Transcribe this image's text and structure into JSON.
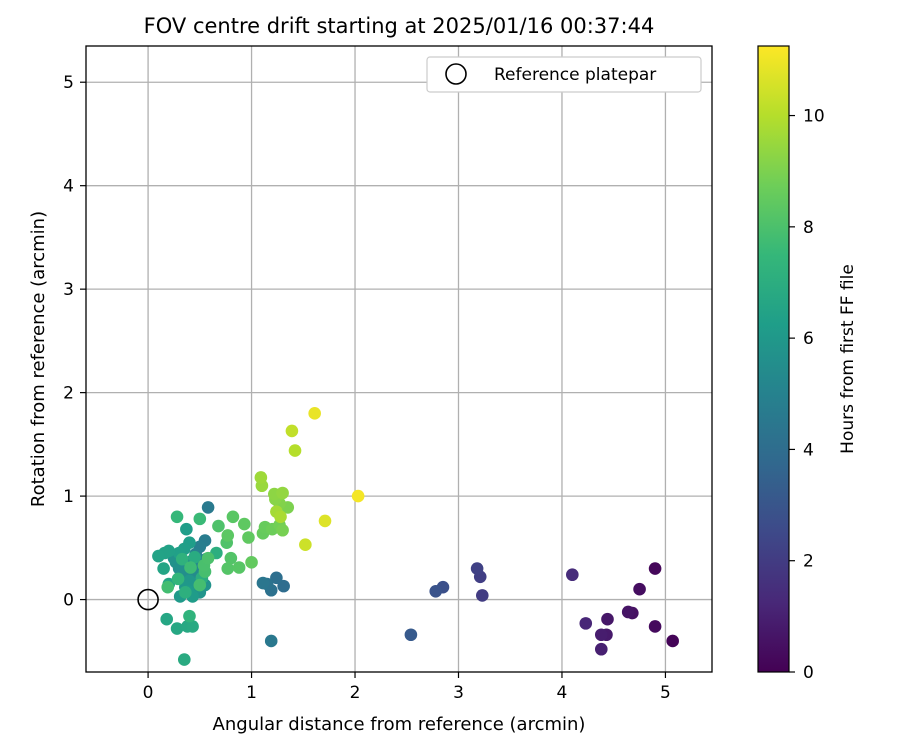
{
  "chart_data": {
    "type": "scatter",
    "title": "FOV centre drift starting at 2025/01/16 00:37:44",
    "xlabel": "Angular distance from reference (arcmin)",
    "ylabel": "Rotation from reference (arcmin)",
    "xlim": [
      -0.6,
      5.45
    ],
    "ylim": [
      -0.7,
      5.35
    ],
    "xticks": [
      "0",
      "1",
      "2",
      "3",
      "4",
      "5"
    ],
    "yticks": [
      "0",
      "1",
      "2",
      "3",
      "4",
      "5"
    ],
    "grid": true,
    "legend": {
      "placement": "top-right",
      "entries": [
        "Reference platepar"
      ]
    },
    "reference_point": {
      "x": 0,
      "y": 0
    },
    "colorbar": {
      "label": "Hours from first FF file",
      "range": [
        0,
        11.25
      ],
      "ticks": [
        "0",
        "2",
        "4",
        "6",
        "8",
        "10"
      ],
      "colormap": "viridis",
      "colors": [
        "#440154",
        "#482878",
        "#3e4989",
        "#31688e",
        "#26828e",
        "#1f9e89",
        "#35b779",
        "#6ece58",
        "#b5de2b",
        "#fde725"
      ]
    },
    "series": [
      {
        "points": [
          {
            "x": 5.07,
            "y": -0.4,
            "c": 0.1
          },
          {
            "x": 4.9,
            "y": 0.3,
            "c": 0.2
          },
          {
            "x": 4.9,
            "y": -0.26,
            "c": 0.3
          },
          {
            "x": 4.75,
            "y": 0.1,
            "c": 0.4
          },
          {
            "x": 4.68,
            "y": -0.13,
            "c": 0.5
          },
          {
            "x": 4.64,
            "y": -0.12,
            "c": 0.6
          },
          {
            "x": 4.44,
            "y": -0.19,
            "c": 0.7
          },
          {
            "x": 4.43,
            "y": -0.34,
            "c": 0.8
          },
          {
            "x": 4.38,
            "y": -0.34,
            "c": 0.9
          },
          {
            "x": 4.38,
            "y": -0.48,
            "c": 1.0
          },
          {
            "x": 4.23,
            "y": -0.23,
            "c": 1.2
          },
          {
            "x": 4.1,
            "y": 0.24,
            "c": 1.4
          },
          {
            "x": 3.23,
            "y": 0.04,
            "c": 2.0
          },
          {
            "x": 3.21,
            "y": 0.22,
            "c": 2.1
          },
          {
            "x": 3.18,
            "y": 0.3,
            "c": 2.2
          },
          {
            "x": 2.85,
            "y": 0.12,
            "c": 2.8
          },
          {
            "x": 2.78,
            "y": 0.08,
            "c": 2.9
          },
          {
            "x": 2.54,
            "y": -0.34,
            "c": 3.2
          },
          {
            "x": 1.31,
            "y": 0.13,
            "c": 4.0
          },
          {
            "x": 1.24,
            "y": 0.21,
            "c": 4.1
          },
          {
            "x": 1.19,
            "y": 0.09,
            "c": 4.2
          },
          {
            "x": 1.15,
            "y": 0.15,
            "c": 4.3
          },
          {
            "x": 1.11,
            "y": 0.16,
            "c": 4.4
          },
          {
            "x": 1.19,
            "y": -0.4,
            "c": 4.5
          },
          {
            "x": 0.58,
            "y": 0.89,
            "c": 4.6
          },
          {
            "x": 0.55,
            "y": 0.57,
            "c": 4.7
          },
          {
            "x": 0.5,
            "y": 0.51,
            "c": 4.8
          },
          {
            "x": 0.46,
            "y": 0.44,
            "c": 4.9
          },
          {
            "x": 0.56,
            "y": 0.39,
            "c": 5.0
          },
          {
            "x": 0.42,
            "y": 0.37,
            "c": 5.1
          },
          {
            "x": 0.45,
            "y": 0.36,
            "c": 5.15
          },
          {
            "x": 0.38,
            "y": 0.35,
            "c": 5.2
          },
          {
            "x": 0.35,
            "y": 0.33,
            "c": 5.25
          },
          {
            "x": 0.5,
            "y": 0.31,
            "c": 5.3
          },
          {
            "x": 0.48,
            "y": 0.27,
            "c": 5.35
          },
          {
            "x": 0.42,
            "y": 0.25,
            "c": 5.4
          },
          {
            "x": 0.37,
            "y": 0.21,
            "c": 5.5
          },
          {
            "x": 0.33,
            "y": 0.24,
            "c": 5.55
          },
          {
            "x": 0.3,
            "y": 0.3,
            "c": 5.6
          },
          {
            "x": 0.27,
            "y": 0.36,
            "c": 5.65
          },
          {
            "x": 0.25,
            "y": 0.4,
            "c": 5.7
          },
          {
            "x": 0.55,
            "y": 0.14,
            "c": 5.75
          },
          {
            "x": 0.5,
            "y": 0.07,
            "c": 5.8
          },
          {
            "x": 0.47,
            "y": 0.11,
            "c": 5.85
          },
          {
            "x": 0.44,
            "y": 0.15,
            "c": 5.9
          },
          {
            "x": 0.4,
            "y": 0.18,
            "c": 5.95
          },
          {
            "x": 0.36,
            "y": 0.12,
            "c": 6.0
          },
          {
            "x": 0.31,
            "y": 0.03,
            "c": 6.05
          },
          {
            "x": 0.39,
            "y": 0.08,
            "c": 6.1
          },
          {
            "x": 0.43,
            "y": 0.03,
            "c": 6.15
          },
          {
            "x": 0.37,
            "y": 0.68,
            "c": 6.2
          },
          {
            "x": 0.4,
            "y": 0.55,
            "c": 6.25
          },
          {
            "x": 0.35,
            "y": 0.49,
            "c": 6.3
          },
          {
            "x": 0.3,
            "y": 0.45,
            "c": 6.35
          },
          {
            "x": 0.2,
            "y": 0.47,
            "c": 6.4
          },
          {
            "x": 0.16,
            "y": 0.45,
            "c": 6.45
          },
          {
            "x": 0.1,
            "y": 0.42,
            "c": 6.5
          },
          {
            "x": 0.15,
            "y": 0.3,
            "c": 6.55
          },
          {
            "x": 0.2,
            "y": 0.15,
            "c": 6.6
          },
          {
            "x": 0.18,
            "y": -0.19,
            "c": 6.65
          },
          {
            "x": 0.28,
            "y": -0.28,
            "c": 6.7
          },
          {
            "x": 0.38,
            "y": -0.26,
            "c": 6.75
          },
          {
            "x": 0.43,
            "y": -0.26,
            "c": 6.8
          },
          {
            "x": 0.35,
            "y": -0.58,
            "c": 6.85
          },
          {
            "x": 0.45,
            "y": 0.41,
            "c": 6.9
          },
          {
            "x": 0.52,
            "y": 0.21,
            "c": 7.0
          },
          {
            "x": 0.66,
            "y": 0.45,
            "c": 7.05
          },
          {
            "x": 0.36,
            "y": 0.07,
            "c": 7.1
          },
          {
            "x": 0.33,
            "y": 0.39,
            "c": 7.2
          },
          {
            "x": 0.4,
            "y": -0.16,
            "c": 7.3
          },
          {
            "x": 0.29,
            "y": 0.2,
            "c": 7.4
          },
          {
            "x": 0.28,
            "y": 0.8,
            "c": 7.5
          },
          {
            "x": 0.5,
            "y": 0.78,
            "c": 7.6
          },
          {
            "x": 0.41,
            "y": 0.31,
            "c": 7.7
          },
          {
            "x": 0.19,
            "y": 0.12,
            "c": 7.8
          },
          {
            "x": 0.5,
            "y": 0.14,
            "c": 7.85
          },
          {
            "x": 0.55,
            "y": 0.27,
            "c": 7.9
          },
          {
            "x": 0.54,
            "y": 0.33,
            "c": 7.95
          },
          {
            "x": 0.58,
            "y": 0.4,
            "c": 8.0
          },
          {
            "x": 0.68,
            "y": 0.71,
            "c": 8.05
          },
          {
            "x": 0.76,
            "y": 0.55,
            "c": 8.1
          },
          {
            "x": 0.8,
            "y": 0.4,
            "c": 8.15
          },
          {
            "x": 0.77,
            "y": 0.3,
            "c": 8.2
          },
          {
            "x": 0.88,
            "y": 0.31,
            "c": 8.25
          },
          {
            "x": 0.82,
            "y": 0.8,
            "c": 8.3
          },
          {
            "x": 0.77,
            "y": 0.62,
            "c": 8.35
          },
          {
            "x": 0.93,
            "y": 0.73,
            "c": 8.4
          },
          {
            "x": 0.97,
            "y": 0.6,
            "c": 8.45
          },
          {
            "x": 1.0,
            "y": 0.36,
            "c": 8.5
          },
          {
            "x": 1.11,
            "y": 0.64,
            "c": 8.55
          },
          {
            "x": 1.13,
            "y": 0.7,
            "c": 8.6
          },
          {
            "x": 1.2,
            "y": 0.68,
            "c": 8.7
          },
          {
            "x": 1.27,
            "y": 0.72,
            "c": 8.8
          },
          {
            "x": 1.3,
            "y": 0.67,
            "c": 8.9
          },
          {
            "x": 1.35,
            "y": 0.89,
            "c": 9.0
          },
          {
            "x": 1.27,
            "y": 0.93,
            "c": 9.1
          },
          {
            "x": 1.23,
            "y": 0.97,
            "c": 9.2
          },
          {
            "x": 1.22,
            "y": 1.02,
            "c": 9.3
          },
          {
            "x": 1.3,
            "y": 1.03,
            "c": 9.4
          },
          {
            "x": 1.1,
            "y": 1.1,
            "c": 9.5
          },
          {
            "x": 1.09,
            "y": 1.18,
            "c": 9.6
          },
          {
            "x": 1.24,
            "y": 0.85,
            "c": 9.7
          },
          {
            "x": 1.28,
            "y": 0.8,
            "c": 9.8
          },
          {
            "x": 1.42,
            "y": 1.44,
            "c": 10.0
          },
          {
            "x": 1.39,
            "y": 1.63,
            "c": 10.2
          },
          {
            "x": 1.52,
            "y": 0.53,
            "c": 10.4
          },
          {
            "x": 1.71,
            "y": 0.76,
            "c": 10.7
          },
          {
            "x": 1.61,
            "y": 1.8,
            "c": 10.9
          },
          {
            "x": 2.03,
            "y": 1.0,
            "c": 11.1
          }
        ]
      }
    ]
  }
}
